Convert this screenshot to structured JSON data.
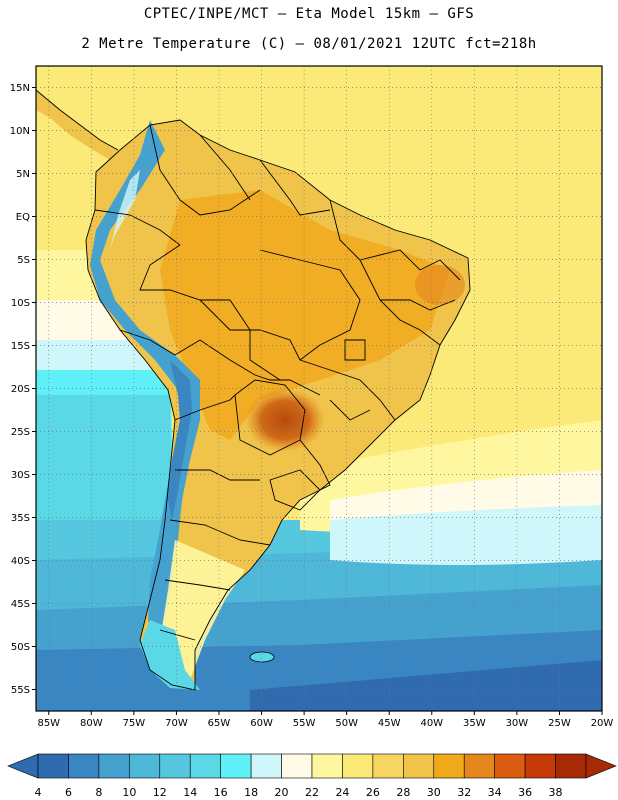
{
  "header": {
    "line1": "CPTEC/INPE/MCT –  Eta Model 15km – GFS",
    "line2": "2 Metre Temperature (C) – 08/01/2021 12UTC fct=218h"
  },
  "map": {
    "lat_labels": [
      "15N",
      "10N",
      "5N",
      "EQ",
      "5S",
      "10S",
      "15S",
      "20S",
      "25S",
      "30S",
      "35S",
      "40S",
      "45S",
      "50S",
      "55S"
    ],
    "lon_labels": [
      "85W",
      "80W",
      "75W",
      "70W",
      "65W",
      "60W",
      "55W",
      "50W",
      "45W",
      "40W",
      "35W",
      "30W",
      "25W",
      "20W"
    ],
    "lat_range": [
      17.5,
      -57.5
    ],
    "lon_range": [
      -86.5,
      -20.0
    ]
  },
  "colorbar": {
    "labels": [
      "4",
      "6",
      "8",
      "10",
      "12",
      "14",
      "16",
      "18",
      "20",
      "22",
      "24",
      "26",
      "28",
      "30",
      "32",
      "34",
      "36",
      "38"
    ],
    "colors": [
      "#2f6bae",
      "#3a86c2",
      "#45a2cf",
      "#4fb7d8",
      "#55c8df",
      "#5ad8e6",
      "#60f0f8",
      "#cff6fb",
      "#fffbe6",
      "#fff7a0",
      "#fcea78",
      "#f6d660",
      "#f0c44a",
      "#f1a91c",
      "#e5861c",
      "#da5c10",
      "#c53a08",
      "#a52a05"
    ],
    "left_arrow_color": "#2f6bae",
    "right_arrow_color": "#a52a05"
  }
}
